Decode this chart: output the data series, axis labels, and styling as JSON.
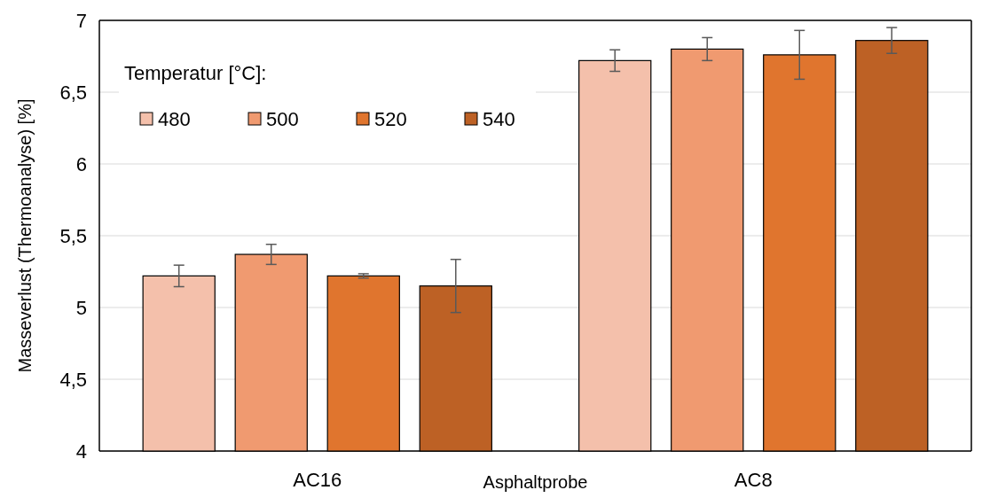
{
  "chart_data": {
    "type": "bar",
    "xlabel": "Asphaltprobe",
    "ylabel": "Masseverlust (Thermoanalyse) [%]",
    "legend_title": "Temperatur [°C]:",
    "categories": [
      "AC16",
      "AC8"
    ],
    "series": [
      {
        "name": "480",
        "color": "#f4c0ab",
        "values": [
          5.22,
          6.72
        ],
        "errors": [
          0.075,
          0.075
        ]
      },
      {
        "name": "500",
        "color": "#f09a70",
        "values": [
          5.37,
          6.8
        ],
        "errors": [
          0.07,
          0.08
        ]
      },
      {
        "name": "520",
        "color": "#e0752e",
        "values": [
          5.22,
          6.76
        ],
        "errors": [
          0.015,
          0.17
        ]
      },
      {
        "name": "540",
        "color": "#bd6125",
        "values": [
          5.15,
          6.86
        ],
        "errors": [
          0.185,
          0.09
        ]
      }
    ],
    "ylim": [
      4,
      7
    ],
    "yticks": [
      {
        "value": 4,
        "label": "4"
      },
      {
        "value": 4.5,
        "label": "4,5"
      },
      {
        "value": 5,
        "label": "5"
      },
      {
        "value": 5.5,
        "label": "5,5"
      },
      {
        "value": 6,
        "label": "6"
      },
      {
        "value": 6.5,
        "label": "6,5"
      },
      {
        "value": 7,
        "label": "7"
      }
    ],
    "grid": "y",
    "legend": "top left"
  }
}
